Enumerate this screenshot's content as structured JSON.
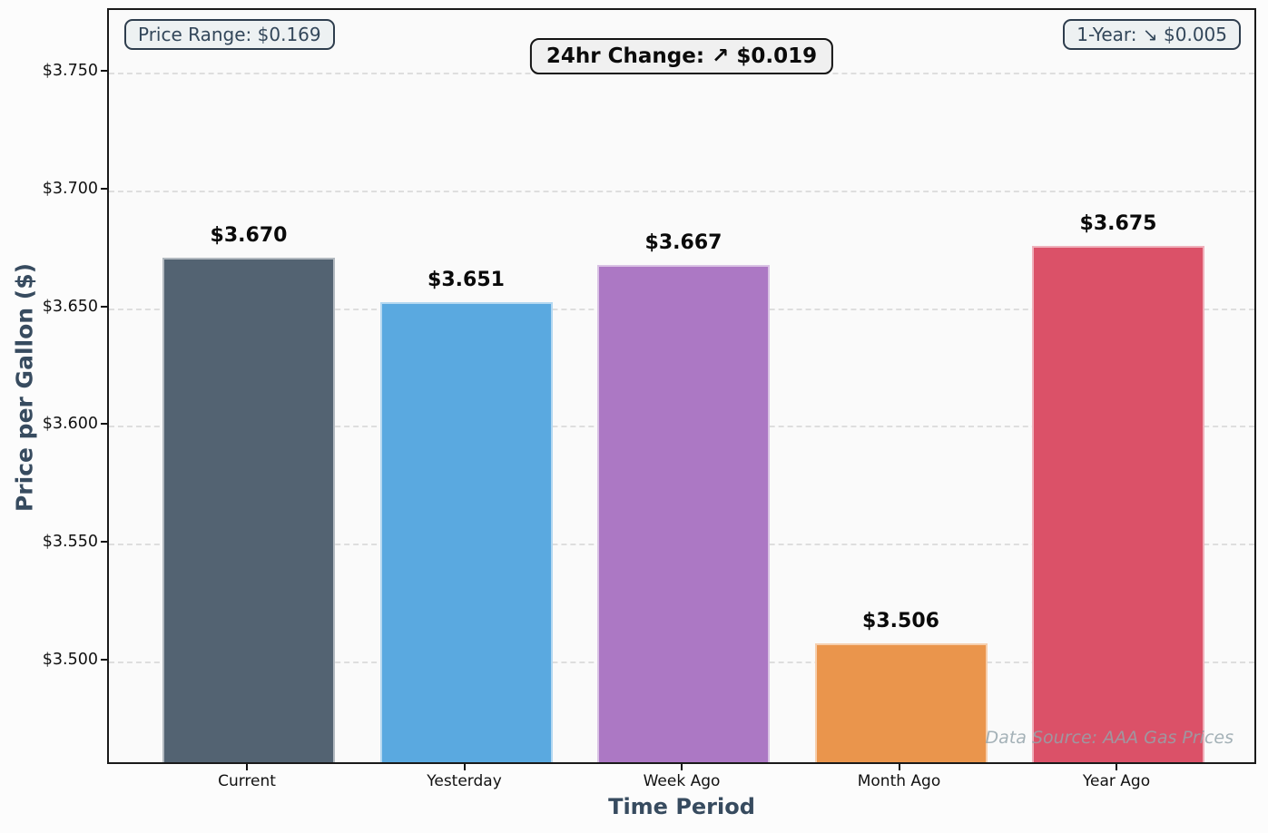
{
  "header": {
    "price_range_label": "Price Range: $0.169",
    "change_24hr_label": "24hr Change: ↗ $0.019",
    "one_year_label": "1-Year: ↘ $0.005"
  },
  "watermark": "Data Source: AAA Gas Prices",
  "chart_data": {
    "type": "bar",
    "title": "",
    "xlabel": "Time Period",
    "ylabel": "Price per Gallon ($)",
    "categories": [
      "Current",
      "Yesterday",
      "Week Ago",
      "Month Ago",
      "Year Ago"
    ],
    "values": [
      3.67,
      3.651,
      3.667,
      3.506,
      3.675
    ],
    "value_labels": [
      "$3.670",
      "$3.651",
      "$3.667",
      "$3.506",
      "$3.675"
    ],
    "bar_colors": [
      "#536372",
      "#5AA9E0",
      "#AC78C4",
      "#EA954C",
      "#DB5168"
    ],
    "ylim": [
      3.4557,
      3.7766
    ],
    "yticks": [
      3.5,
      3.55,
      3.6,
      3.65,
      3.7,
      3.75
    ],
    "ytick_labels": [
      "$3.500",
      "$3.550",
      "$3.600",
      "$3.650",
      "$3.700",
      "$3.750"
    ],
    "grid": "horizontal-dashed",
    "legend": "none"
  }
}
